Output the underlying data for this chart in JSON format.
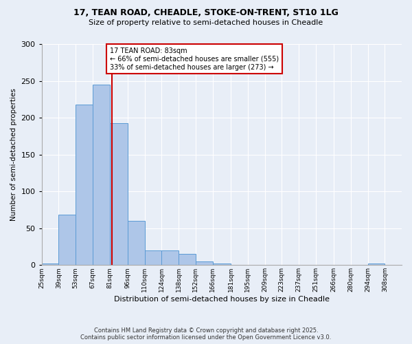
{
  "title1": "17, TEAN ROAD, CHEADLE, STOKE-ON-TRENT, ST10 1LG",
  "title2": "Size of property relative to semi-detached houses in Cheadle",
  "xlabel": "Distribution of semi-detached houses by size in Cheadle",
  "ylabel": "Number of semi-detached properties",
  "bin_labels": [
    "25sqm",
    "39sqm",
    "53sqm",
    "67sqm",
    "81sqm",
    "96sqm",
    "110sqm",
    "124sqm",
    "138sqm",
    "152sqm",
    "166sqm",
    "181sqm",
    "195sqm",
    "209sqm",
    "223sqm",
    "237sqm",
    "251sqm",
    "266sqm",
    "280sqm",
    "294sqm",
    "308sqm"
  ],
  "bar_heights": [
    2,
    68,
    218,
    245,
    193,
    60,
    20,
    20,
    15,
    5,
    2,
    0,
    0,
    0,
    0,
    0,
    0,
    0,
    0,
    2,
    0
  ],
  "bar_color": "#aec6e8",
  "bar_edge_color": "#5b9bd5",
  "property_line_x": 83,
  "bin_edges": [
    25,
    39,
    53,
    67,
    81,
    96,
    110,
    124,
    138,
    152,
    166,
    181,
    195,
    209,
    223,
    237,
    251,
    266,
    280,
    294,
    308
  ],
  "annotation_title": "17 TEAN ROAD: 83sqm",
  "annotation_line1": "← 66% of semi-detached houses are smaller (555)",
  "annotation_line2": "33% of semi-detached houses are larger (273) →",
  "annotation_box_color": "#ffffff",
  "annotation_box_edge": "#cc0000",
  "vline_color": "#cc0000",
  "ylim": [
    0,
    300
  ],
  "yticks": [
    0,
    50,
    100,
    150,
    200,
    250,
    300
  ],
  "background_color": "#e8eef7",
  "footer1": "Contains HM Land Registry data © Crown copyright and database right 2025.",
  "footer2": "Contains public sector information licensed under the Open Government Licence v3.0."
}
